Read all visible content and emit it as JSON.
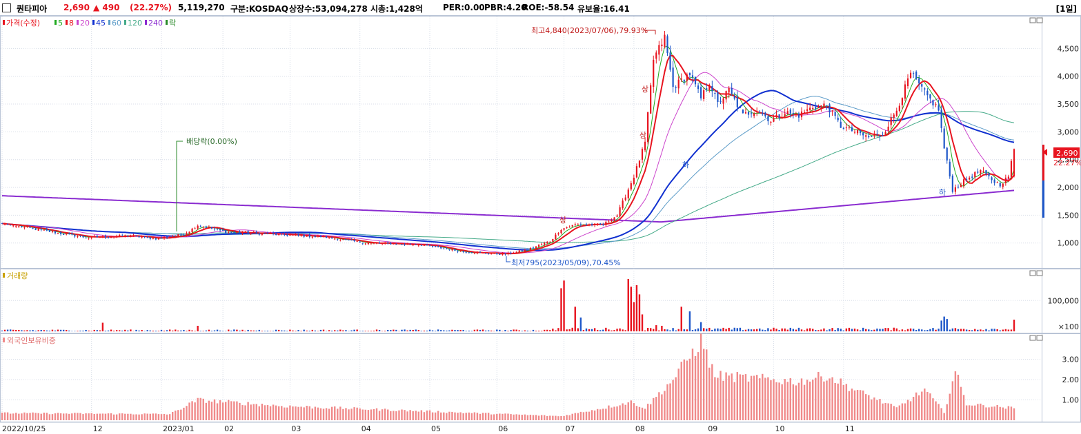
{
  "header": {
    "name": "퀀타피아",
    "price": "2,690",
    "change": "▲ 490",
    "change_pct": "(22.27%)",
    "volume": "5,119,270",
    "market": "구분:KOSDAQ",
    "shares": "상장수:53,094,278",
    "mcap": "시총:1,428억",
    "per": "PER:0.00",
    "pbr": "PBR:4.20",
    "roe": "ROE:-58.54",
    "float": "유보율:16.41",
    "period": "[1일]"
  },
  "colors": {
    "up": "#e8141f",
    "down": "#1e57c9",
    "ma5": "#1faa1f",
    "ma20": "#cc44cc",
    "ma45": "#1030d0",
    "ma60": "#5b9bc8",
    "ma120": "#44aa88",
    "ma240": "#8a2bd0",
    "foreign": "#f08a8a",
    "ex": "#2a8a2a"
  },
  "price_legend": [
    {
      "label": "가격(수정)",
      "color": "#e8141f"
    },
    {
      "label": "5",
      "color": "#1faa1f"
    },
    {
      "label": "8",
      "color": "#e8141f"
    },
    {
      "label": "20",
      "color": "#cc44cc"
    },
    {
      "label": "45",
      "color": "#1030d0"
    },
    {
      "label": "60",
      "color": "#5b9bc8"
    },
    {
      "label": "120",
      "color": "#44aa88"
    },
    {
      "label": "240",
      "color": "#8a2bd0"
    },
    {
      "label": "락",
      "color": "#2a8a2a"
    }
  ],
  "annotations": {
    "high": "최고4,840(2023/07/06),79.93%",
    "low": "최저795(2023/05/09),70.45%",
    "dividend": "배당락(0.00%)",
    "limit_up": "상",
    "limit_down": "하",
    "last_price": "2,690",
    "last_pct": "22.27%"
  },
  "volume_panel": {
    "label": "거래량",
    "ticks": [
      "100,000",
      "×100"
    ]
  },
  "foreign_panel": {
    "label": "외국인보유비중",
    "ticks": [
      "3.00",
      "2.00",
      "1.00"
    ]
  },
  "chart_data": {
    "type": "candlestick",
    "x_labels": [
      "2022/10/25",
      "12",
      "2023/01",
      "02",
      "03",
      "04",
      "05",
      "06",
      "07",
      "08",
      "09",
      "10",
      "11"
    ],
    "price_axis": {
      "ticks": [
        1000,
        1500,
        2000,
        2500,
        3000,
        3500,
        4000,
        4500
      ],
      "tick_labels": [
        "1,000",
        "1,500",
        "2,000",
        "2,500",
        "3,000",
        "3,500",
        "4,000",
        "4,500"
      ],
      "ylim": [
        600,
        5000
      ]
    },
    "volume_axis": {
      "ylim": [
        0,
        170000
      ]
    },
    "foreign_axis": {
      "ticks": [
        1,
        2,
        3
      ],
      "ylim": [
        0,
        4
      ]
    },
    "anchors": [
      [
        0,
        1350
      ],
      [
        20,
        1180
      ],
      [
        30,
        1100
      ],
      [
        45,
        1130
      ],
      [
        55,
        1080
      ],
      [
        65,
        1150
      ],
      [
        70,
        1320
      ],
      [
        80,
        1200
      ],
      [
        100,
        1150
      ],
      [
        115,
        1110
      ],
      [
        130,
        1000
      ],
      [
        150,
        970
      ],
      [
        165,
        840
      ],
      [
        180,
        800
      ],
      [
        188,
        880
      ],
      [
        196,
        1030
      ],
      [
        200,
        1250
      ],
      [
        205,
        1330
      ],
      [
        215,
        1330
      ],
      [
        220,
        1500
      ],
      [
        226,
        2200
      ],
      [
        230,
        2800
      ],
      [
        233,
        4300
      ],
      [
        237,
        4700
      ],
      [
        240,
        3800
      ],
      [
        246,
        4050
      ],
      [
        250,
        3600
      ],
      [
        253,
        3900
      ],
      [
        256,
        3500
      ],
      [
        260,
        3750
      ],
      [
        265,
        3300
      ],
      [
        270,
        3400
      ],
      [
        275,
        3200
      ],
      [
        280,
        3350
      ],
      [
        285,
        3300
      ],
      [
        290,
        3450
      ],
      [
        295,
        3480
      ],
      [
        300,
        3100
      ],
      [
        305,
        3000
      ],
      [
        310,
        2900
      ],
      [
        315,
        2950
      ],
      [
        320,
        3400
      ],
      [
        325,
        4050
      ],
      [
        330,
        3700
      ],
      [
        335,
        3400
      ],
      [
        337,
        2700
      ],
      [
        340,
        1950
      ],
      [
        345,
        2150
      ],
      [
        350,
        2300
      ],
      [
        355,
        2100
      ],
      [
        357,
        2050
      ],
      [
        360,
        2200
      ],
      [
        362,
        2690
      ]
    ],
    "volume_spikes": [
      [
        36,
        28000
      ],
      [
        70,
        18000
      ],
      [
        200,
        140000
      ],
      [
        201,
        165000
      ],
      [
        205,
        80000
      ],
      [
        207,
        45000
      ],
      [
        224,
        170000
      ],
      [
        225,
        145000
      ],
      [
        226,
        95000
      ],
      [
        227,
        150000
      ],
      [
        228,
        120000
      ],
      [
        229,
        55000
      ],
      [
        234,
        20000
      ],
      [
        236,
        18000
      ],
      [
        243,
        80000
      ],
      [
        246,
        65000
      ],
      [
        250,
        30000
      ],
      [
        336,
        35000
      ],
      [
        337,
        48000
      ],
      [
        338,
        40000
      ],
      [
        362,
        38000
      ]
    ],
    "foreign_series": "foreign ownership percent per day, range 0.1 to 3.9",
    "moving_averages": [
      5,
      8,
      20,
      45,
      60,
      120,
      240
    ],
    "last": {
      "price": 2690,
      "change": 490,
      "change_pct": 22.27
    },
    "high": {
      "value": 4840,
      "date": "2023/07/06"
    },
    "low": {
      "value": 795,
      "date": "2023/05/09"
    }
  }
}
